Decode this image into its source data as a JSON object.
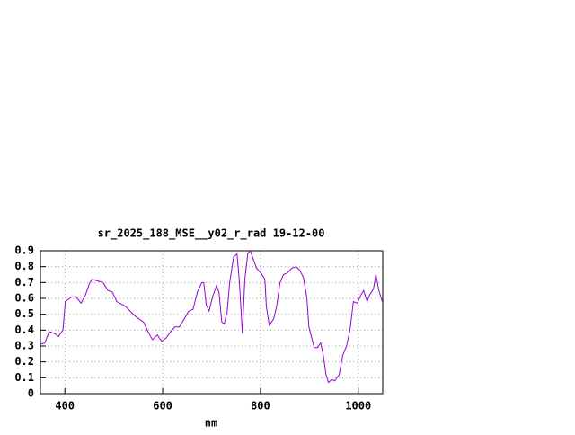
{
  "chart_data": {
    "type": "line",
    "title": "sr_2025_188_MSE__y02_r_rad 19-12-00",
    "x_label": "nm",
    "xlim": [
      350,
      1050
    ],
    "xticks": [
      400,
      600,
      800,
      1000
    ],
    "ylim": [
      0,
      0.9
    ],
    "yticks": [
      0,
      0.1,
      0.2,
      0.3,
      0.4,
      0.5,
      0.6,
      0.7,
      0.8,
      0.9
    ],
    "grid": true,
    "x": [
      350,
      359,
      368,
      378,
      387,
      396,
      401,
      414,
      423,
      433,
      442,
      451,
      456,
      478,
      488,
      497,
      506,
      524,
      543,
      561,
      570,
      579,
      589,
      598,
      607,
      616,
      625,
      634,
      644,
      653,
      662,
      671,
      680,
      684,
      689,
      695,
      702,
      710,
      715,
      721,
      726,
      732,
      737,
      745,
      752,
      757,
      763,
      768,
      774,
      779,
      785,
      792,
      801,
      809,
      812,
      818,
      827,
      833,
      840,
      847,
      855,
      864,
      873,
      880,
      888,
      895,
      899,
      904,
      910,
      917,
      923,
      928,
      934,
      939,
      946,
      952,
      961,
      968,
      976,
      983,
      990,
      998,
      1005,
      1011,
      1018,
      1023,
      1031,
      1036,
      1042,
      1049
    ],
    "series": [
      {
        "color": "#9400d3",
        "values": [
          0.31,
          0.32,
          0.39,
          0.38,
          0.36,
          0.4,
          0.58,
          0.61,
          0.61,
          0.57,
          0.62,
          0.7,
          0.72,
          0.7,
          0.65,
          0.64,
          0.58,
          0.55,
          0.49,
          0.45,
          0.39,
          0.34,
          0.37,
          0.33,
          0.35,
          0.39,
          0.42,
          0.42,
          0.47,
          0.52,
          0.53,
          0.64,
          0.7,
          0.7,
          0.56,
          0.52,
          0.61,
          0.68,
          0.64,
          0.45,
          0.44,
          0.52,
          0.7,
          0.86,
          0.88,
          0.7,
          0.38,
          0.72,
          0.88,
          0.9,
          0.85,
          0.79,
          0.76,
          0.72,
          0.55,
          0.43,
          0.47,
          0.55,
          0.7,
          0.75,
          0.76,
          0.79,
          0.8,
          0.78,
          0.73,
          0.6,
          0.42,
          0.36,
          0.29,
          0.29,
          0.32,
          0.25,
          0.12,
          0.07,
          0.09,
          0.08,
          0.12,
          0.24,
          0.3,
          0.4,
          0.58,
          0.57,
          0.62,
          0.65,
          0.58,
          0.62,
          0.66,
          0.75,
          0.65,
          0.58
        ]
      }
    ]
  }
}
